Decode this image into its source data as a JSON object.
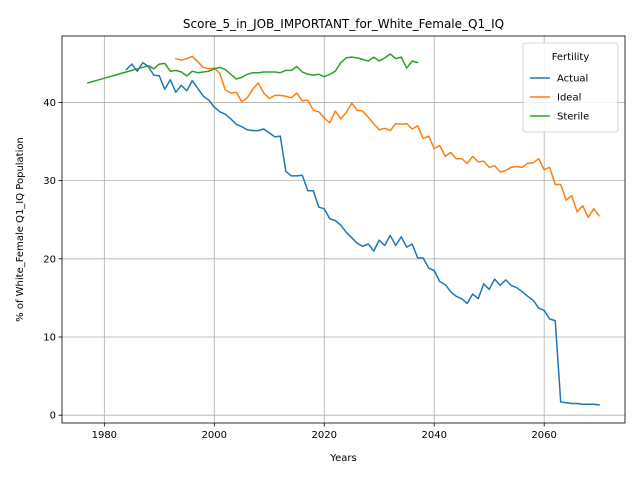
{
  "chart_data": {
    "type": "line",
    "title": "Score_5_in_JOB_IMPORTANT_for_White_Female_Q1_IQ",
    "xlabel": "Years",
    "ylabel": "% of White_Female Q1_IQ Population",
    "xlim": [
      1972.3,
      2074.7
    ],
    "ylim": [
      -1.0,
      48.5
    ],
    "xticks": [
      1980,
      2000,
      2020,
      2040,
      2060
    ],
    "yticks": [
      0,
      10,
      20,
      30,
      40
    ],
    "grid": true,
    "legend": {
      "title": "Fertility",
      "placement": "top-right"
    },
    "series": [
      {
        "name": "Actual",
        "color": "#1f77b4",
        "x": [
          1984,
          1985,
          1986,
          1987,
          1988,
          1989,
          1990,
          1991,
          1992,
          1993,
          1994,
          1995,
          1996,
          1997,
          1998,
          1999,
          2000,
          2001,
          2002,
          2003,
          2004,
          2005,
          2006,
          2007,
          2008,
          2009,
          2010,
          2011,
          2012,
          2013,
          2014,
          2015,
          2016,
          2017,
          2018,
          2019,
          2020,
          2021,
          2022,
          2023,
          2024,
          2025,
          2026,
          2027,
          2028,
          2029,
          2030,
          2031,
          2032,
          2033,
          2034,
          2035,
          2036,
          2037,
          2038,
          2039,
          2040,
          2041,
          2042,
          2043,
          2044,
          2045,
          2046,
          2047,
          2048,
          2049,
          2050,
          2051,
          2052,
          2053,
          2054,
          2055,
          2056,
          2057,
          2058,
          2059,
          2060,
          2061,
          2062,
          2063,
          2064,
          2065,
          2066,
          2067,
          2068,
          2069,
          2070
        ],
        "y": [
          44.2,
          44.9,
          44.0,
          45.1,
          44.6,
          43.5,
          43.4,
          41.7,
          42.9,
          41.3,
          42.2,
          41.5,
          42.8,
          41.8,
          40.8,
          40.3,
          39.4,
          38.8,
          38.5,
          37.9,
          37.2,
          36.9,
          36.5,
          36.4,
          36.4,
          36.6,
          36.1,
          35.6,
          35.7,
          31.2,
          30.6,
          30.6,
          30.7,
          28.7,
          28.7,
          26.6,
          26.4,
          25.1,
          24.9,
          24.3,
          23.4,
          22.7,
          22.0,
          21.6,
          21.9,
          21.0,
          22.4,
          21.7,
          23.0,
          21.7,
          22.8,
          21.5,
          21.9,
          20.1,
          20.1,
          18.8,
          18.5,
          17.1,
          16.7,
          15.8,
          15.2,
          14.9,
          14.3,
          15.5,
          14.9,
          16.8,
          16.1,
          17.4,
          16.6,
          17.3,
          16.6,
          16.3,
          15.8,
          15.2,
          14.7,
          13.7,
          13.4,
          12.3,
          12.1,
          1.7,
          1.6,
          1.5,
          1.5,
          1.4,
          1.4,
          1.4,
          1.3
        ]
      },
      {
        "name": "Ideal",
        "color": "#ff7f0e",
        "x": [
          1993,
          1994,
          1995,
          1996,
          1997,
          1998,
          1999,
          2000,
          2001,
          2002,
          2003,
          2004,
          2005,
          2006,
          2007,
          2008,
          2009,
          2010,
          2011,
          2012,
          2013,
          2014,
          2015,
          2016,
          2017,
          2018,
          2019,
          2020,
          2021,
          2022,
          2023,
          2024,
          2025,
          2026,
          2027,
          2028,
          2029,
          2030,
          2031,
          2032,
          2033,
          2034,
          2035,
          2036,
          2037,
          2038,
          2039,
          2040,
          2041,
          2042,
          2043,
          2044,
          2045,
          2046,
          2047,
          2048,
          2049,
          2050,
          2051,
          2052,
          2053,
          2054,
          2055,
          2056,
          2057,
          2058,
          2059,
          2060,
          2061,
          2062,
          2063,
          2064,
          2065,
          2066,
          2067,
          2068,
          2069,
          2070
        ],
        "y": [
          45.6,
          45.4,
          45.6,
          45.9,
          45.2,
          44.5,
          44.3,
          44.4,
          43.7,
          41.6,
          41.2,
          41.3,
          40.1,
          40.6,
          41.7,
          42.5,
          41.2,
          40.5,
          40.9,
          40.9,
          40.8,
          40.6,
          41.2,
          40.2,
          40.3,
          39.0,
          38.8,
          38.0,
          37.4,
          38.9,
          37.9,
          38.7,
          39.9,
          39.0,
          38.9,
          38.1,
          37.3,
          36.5,
          36.7,
          36.4,
          37.3,
          37.2,
          37.3,
          36.6,
          37.0,
          35.4,
          35.7,
          34.1,
          34.5,
          33.1,
          33.6,
          32.8,
          32.8,
          32.2,
          33.1,
          32.4,
          32.5,
          31.7,
          31.9,
          31.1,
          31.3,
          31.7,
          31.8,
          31.7,
          32.2,
          32.3,
          32.8,
          31.4,
          31.7,
          29.5,
          29.5,
          27.5,
          28.1,
          26.0,
          26.8,
          25.3,
          26.4,
          25.5
        ]
      },
      {
        "name": "Sterile",
        "color": "#2ca02c",
        "x": [
          1977,
          1978,
          1979,
          1980,
          1981,
          1982,
          1983,
          1984,
          1985,
          1986,
          1987,
          1988,
          1989,
          1990,
          1991,
          1992,
          1993,
          1994,
          1995,
          1996,
          1997,
          1998,
          1999,
          2000,
          2001,
          2002,
          2003,
          2004,
          2005,
          2006,
          2007,
          2008,
          2009,
          2010,
          2011,
          2012,
          2013,
          2014,
          2015,
          2016,
          2017,
          2018,
          2019,
          2020,
          2021,
          2022,
          2023,
          2024,
          2025,
          2026,
          2027,
          2028,
          2029,
          2030,
          2031,
          2032,
          2033,
          2034,
          2035,
          2036,
          2037
        ],
        "y": [
          42.5,
          42.7,
          42.9,
          43.1,
          43.3,
          43.5,
          43.7,
          43.9,
          44.1,
          44.3,
          44.5,
          44.7,
          44.3,
          44.9,
          45.0,
          44.0,
          44.1,
          43.9,
          43.4,
          44.0,
          43.8,
          43.9,
          44.0,
          44.3,
          44.5,
          44.2,
          43.6,
          43.0,
          43.2,
          43.6,
          43.8,
          43.8,
          43.9,
          43.9,
          43.9,
          43.8,
          44.1,
          44.1,
          44.6,
          43.9,
          43.6,
          43.5,
          43.6,
          43.3,
          43.6,
          44.0,
          45.1,
          45.7,
          45.8,
          45.7,
          45.5,
          45.3,
          45.8,
          45.3,
          45.7,
          46.2,
          45.6,
          45.8,
          44.4,
          45.3,
          45.1
        ]
      }
    ]
  }
}
